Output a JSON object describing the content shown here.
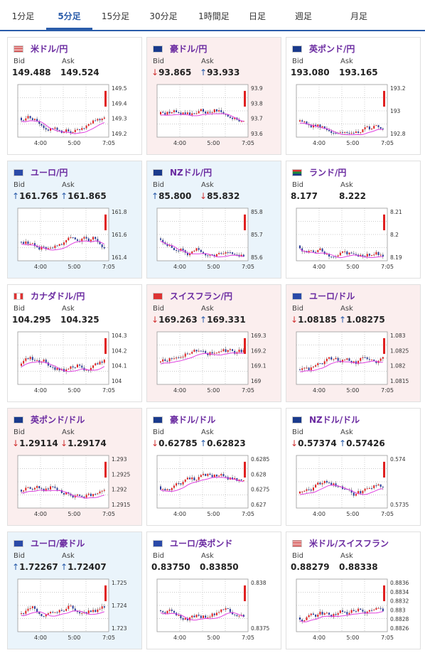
{
  "tabs": [
    "1分足",
    "5分足",
    "15分足",
    "30分足",
    "1時間足",
    "日足",
    "週足",
    "月足"
  ],
  "active_tab": 1,
  "labels": {
    "bid": "Bid",
    "ask": "Ask"
  },
  "colors": {
    "accent": "#2a5caa",
    "name": "#6a2aa0",
    "up_candle": "#2a3c9a",
    "down_candle": "#e02020",
    "ma": "#e040e0",
    "down_bg": "#fbeeee",
    "up_bg": "#eaf4fb"
  },
  "pairs": [
    {
      "name": "米ドル/円",
      "flag": "us",
      "bid": "149.488",
      "ask": "149.524",
      "bid_dir": "",
      "ask_dir": "",
      "bg": "",
      "y_ticks": [
        "149.5",
        "149.4",
        "149.3",
        "149.2"
      ],
      "x_ticks": [
        "4:00",
        "5:00",
        "7:05"
      ]
    },
    {
      "name": "豪ドル/円",
      "flag": "au",
      "bid": "93.865",
      "ask": "93.933",
      "bid_dir": "down",
      "ask_dir": "up",
      "bg": "down",
      "y_ticks": [
        "93.9",
        "93.8",
        "93.7",
        "93.6"
      ],
      "x_ticks": [
        "4:00",
        "5:00",
        "7:05"
      ]
    },
    {
      "name": "英ポンド/円",
      "flag": "gb",
      "bid": "193.080",
      "ask": "193.165",
      "bid_dir": "",
      "ask_dir": "",
      "bg": "",
      "y_ticks": [
        "193.2",
        "193",
        "192.8"
      ],
      "x_ticks": [
        "4:00",
        "5:00",
        "7:05"
      ]
    },
    {
      "name": "ユーロ/円",
      "flag": "eu",
      "bid": "161.765",
      "ask": "161.865",
      "bid_dir": "up",
      "ask_dir": "up",
      "bg": "up",
      "y_ticks": [
        "161.8",
        "161.6",
        "161.4"
      ],
      "x_ticks": [
        "4:00",
        "5:00",
        "7:05"
      ]
    },
    {
      "name": "NZドル/円",
      "flag": "nz",
      "bid": "85.800",
      "ask": "85.832",
      "bid_dir": "up",
      "ask_dir": "down",
      "bg": "up",
      "y_ticks": [
        "85.8",
        "85.7",
        "85.6"
      ],
      "x_ticks": [
        "4:00",
        "5:00",
        "7:05"
      ]
    },
    {
      "name": "ランド/円",
      "flag": "za",
      "bid": "8.177",
      "ask": "8.222",
      "bid_dir": "",
      "ask_dir": "",
      "bg": "",
      "y_ticks": [
        "8.21",
        "8.2",
        "8.19"
      ],
      "x_ticks": [
        "4:00",
        "5:00",
        "7:05"
      ]
    },
    {
      "name": "カナダドル/円",
      "flag": "ca",
      "bid": "104.295",
      "ask": "104.325",
      "bid_dir": "",
      "ask_dir": "",
      "bg": "",
      "y_ticks": [
        "104.3",
        "104.2",
        "104.1",
        "104"
      ],
      "x_ticks": [
        "4:00",
        "5:00",
        "7:05"
      ]
    },
    {
      "name": "スイスフラン/円",
      "flag": "ch",
      "bid": "169.263",
      "ask": "169.331",
      "bid_dir": "down",
      "ask_dir": "up",
      "bg": "down",
      "y_ticks": [
        "169.3",
        "169.2",
        "169.1",
        "169"
      ],
      "x_ticks": [
        "4:00",
        "5:00",
        "7:05"
      ]
    },
    {
      "name": "ユーロ/ドル",
      "flag": "eu",
      "bid": "1.08185",
      "ask": "1.08275",
      "bid_dir": "down",
      "ask_dir": "up",
      "bg": "down",
      "y_ticks": [
        "1.083",
        "1.0825",
        "1.082",
        "1.0815"
      ],
      "x_ticks": [
        "4:00",
        "5:00",
        "7:05"
      ]
    },
    {
      "name": "英ポンド/ドル",
      "flag": "gb",
      "bid": "1.29114",
      "ask": "1.29174",
      "bid_dir": "down",
      "ask_dir": "down",
      "bg": "down",
      "y_ticks": [
        "1.293",
        "1.2925",
        "1.292",
        "1.2915"
      ],
      "x_ticks": [
        "4:00",
        "5:00",
        "7:05"
      ]
    },
    {
      "name": "豪ドル/ドル",
      "flag": "au",
      "bid": "0.62785",
      "ask": "0.62823",
      "bid_dir": "down",
      "ask_dir": "up",
      "bg": "",
      "y_ticks": [
        "0.6285",
        "0.628",
        "0.6275",
        "0.627"
      ],
      "x_ticks": [
        "4:00",
        "5:00",
        "7:05"
      ]
    },
    {
      "name": "NZドル/ドル",
      "flag": "nz",
      "bid": "0.57374",
      "ask": "0.57426",
      "bid_dir": "down",
      "ask_dir": "up",
      "bg": "",
      "y_ticks": [
        "0.574",
        "0.5735"
      ],
      "x_ticks": [
        "4:00",
        "5:00",
        "7:05"
      ]
    },
    {
      "name": "ユーロ/豪ドル",
      "flag": "eu",
      "bid": "1.72267",
      "ask": "1.72407",
      "bid_dir": "up",
      "ask_dir": "up",
      "bg": "up",
      "y_ticks": [
        "1.725",
        "1.724",
        "1.723"
      ],
      "x_ticks": [
        "4:00",
        "5:00",
        "7:05"
      ]
    },
    {
      "name": "ユーロ/英ポンド",
      "flag": "eu",
      "bid": "0.83750",
      "ask": "0.83850",
      "bid_dir": "",
      "ask_dir": "",
      "bg": "",
      "y_ticks": [
        "0.838",
        "0.8375"
      ],
      "x_ticks": [
        "4:00",
        "5:00",
        "7:05"
      ]
    },
    {
      "name": "米ドル/スイスフラン",
      "flag": "us",
      "bid": "0.88279",
      "ask": "0.88338",
      "bid_dir": "",
      "ask_dir": "",
      "bg": "",
      "y_ticks": [
        "0.8836",
        "0.8834",
        "0.8832",
        "0.883",
        "0.8828",
        "0.8826"
      ],
      "x_ticks": [
        "4:00",
        "5:00",
        "7:05"
      ]
    }
  ]
}
